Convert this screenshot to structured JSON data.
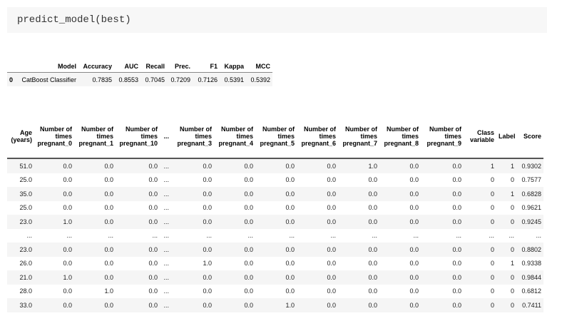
{
  "code": "predict_model(best)",
  "table1": {
    "headers": [
      "Model",
      "Accuracy",
      "AUC",
      "Recall",
      "Prec.",
      "F1",
      "Kappa",
      "MCC"
    ],
    "rows": [
      [
        "0",
        "CatBoost Classifier",
        "0.7835",
        "0.8553",
        "0.7045",
        "0.7209",
        "0.7126",
        "0.5391",
        "0.5392"
      ]
    ]
  },
  "table2": {
    "headers": [
      "Age (years)",
      "Number of times pregnant_0",
      "Number of times pregnant_1",
      "Number of times pregnant_10",
      "...",
      "Number of times pregnant_3",
      "Number of times pregnant_4",
      "Number of times pregnant_5",
      "Number of times pregnant_6",
      "Number of times pregnant_7",
      "Number of times pregnant_8",
      "Number of times pregnant_9",
      "Class variable",
      "Label",
      "Score"
    ],
    "rows": [
      [
        "51.0",
        "0.0",
        "0.0",
        "0.0",
        "...",
        "0.0",
        "0.0",
        "0.0",
        "0.0",
        "1.0",
        "0.0",
        "0.0",
        "1",
        "1",
        "0.9302"
      ],
      [
        "25.0",
        "0.0",
        "0.0",
        "0.0",
        "...",
        "0.0",
        "0.0",
        "0.0",
        "0.0",
        "0.0",
        "0.0",
        "0.0",
        "0",
        "0",
        "0.7577"
      ],
      [
        "35.0",
        "0.0",
        "0.0",
        "0.0",
        "...",
        "0.0",
        "0.0",
        "0.0",
        "0.0",
        "0.0",
        "0.0",
        "0.0",
        "0",
        "1",
        "0.6828"
      ],
      [
        "25.0",
        "0.0",
        "0.0",
        "0.0",
        "...",
        "0.0",
        "0.0",
        "0.0",
        "0.0",
        "0.0",
        "0.0",
        "0.0",
        "0",
        "0",
        "0.9621"
      ],
      [
        "23.0",
        "1.0",
        "0.0",
        "0.0",
        "...",
        "0.0",
        "0.0",
        "0.0",
        "0.0",
        "0.0",
        "0.0",
        "0.0",
        "0",
        "0",
        "0.9245"
      ],
      [
        "...",
        "...",
        "...",
        "...",
        "...",
        "...",
        "...",
        "...",
        "...",
        "...",
        "...",
        "...",
        "...",
        "...",
        "..."
      ],
      [
        "23.0",
        "0.0",
        "0.0",
        "0.0",
        "...",
        "0.0",
        "0.0",
        "0.0",
        "0.0",
        "0.0",
        "0.0",
        "0.0",
        "0",
        "0",
        "0.8802"
      ],
      [
        "26.0",
        "0.0",
        "0.0",
        "0.0",
        "...",
        "1.0",
        "0.0",
        "0.0",
        "0.0",
        "0.0",
        "0.0",
        "0.0",
        "0",
        "1",
        "0.9338"
      ],
      [
        "21.0",
        "1.0",
        "0.0",
        "0.0",
        "...",
        "0.0",
        "0.0",
        "0.0",
        "0.0",
        "0.0",
        "0.0",
        "0.0",
        "0",
        "0",
        "0.9844"
      ],
      [
        "28.0",
        "0.0",
        "1.0",
        "0.0",
        "...",
        "0.0",
        "0.0",
        "0.0",
        "0.0",
        "0.0",
        "0.0",
        "0.0",
        "0",
        "0",
        "0.6812"
      ],
      [
        "33.0",
        "0.0",
        "0.0",
        "0.0",
        "...",
        "0.0",
        "0.0",
        "1.0",
        "0.0",
        "0.0",
        "0.0",
        "0.0",
        "0",
        "0",
        "0.7411"
      ]
    ]
  }
}
